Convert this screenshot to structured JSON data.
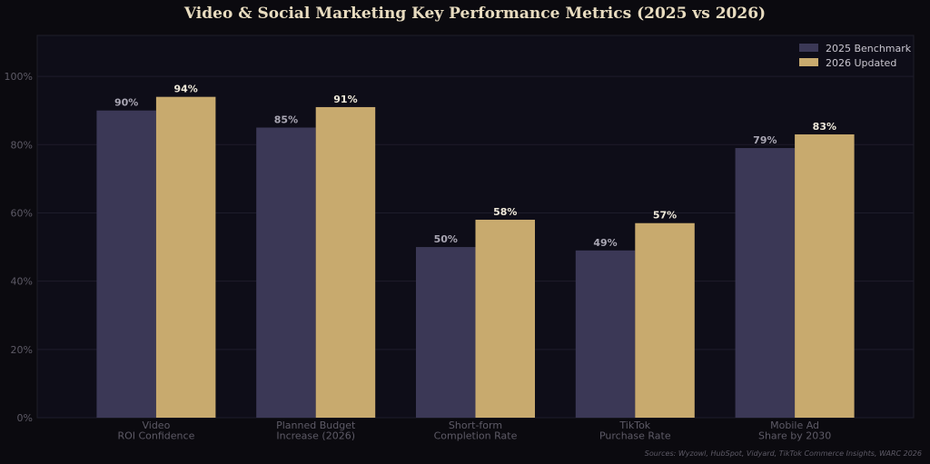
{
  "chart_data": {
    "type": "bar",
    "title": "Video & Social Marketing Key Performance Metrics (2025 vs 2026)",
    "categories": [
      [
        "Video",
        "ROI Confidence"
      ],
      [
        "Planned Budget",
        "Increase (2026)"
      ],
      [
        "Short-form",
        "Completion Rate"
      ],
      [
        "TikTok",
        "Purchase Rate"
      ],
      [
        "Mobile Ad",
        "Share by 2030"
      ]
    ],
    "series": [
      {
        "name": "2025 Benchmark",
        "values": [
          90,
          85,
          50,
          49,
          79
        ],
        "labels": [
          "90%",
          "85%",
          "50%",
          "49%",
          "79%"
        ],
        "color": "#3b3856",
        "label_color": "#a9a6b3"
      },
      {
        "name": "2026 Updated",
        "values": [
          94,
          91,
          58,
          57,
          83
        ],
        "labels": [
          "94%",
          "91%",
          "58%",
          "57%",
          "83%"
        ],
        "color": "#c8aa6e",
        "label_color": "#efe9da"
      }
    ],
    "y_ticks": [
      0,
      20,
      40,
      60,
      80,
      100
    ],
    "y_tick_labels": [
      "0%",
      "20%",
      "40%",
      "60%",
      "80%",
      "100%"
    ],
    "ylim": [
      0,
      112
    ],
    "grid": true,
    "legend_position": "top-right",
    "source": "Sources: Wyzowl, HubSpot, Vidyard, TikTok Commerce Insights, WARC 2026"
  }
}
